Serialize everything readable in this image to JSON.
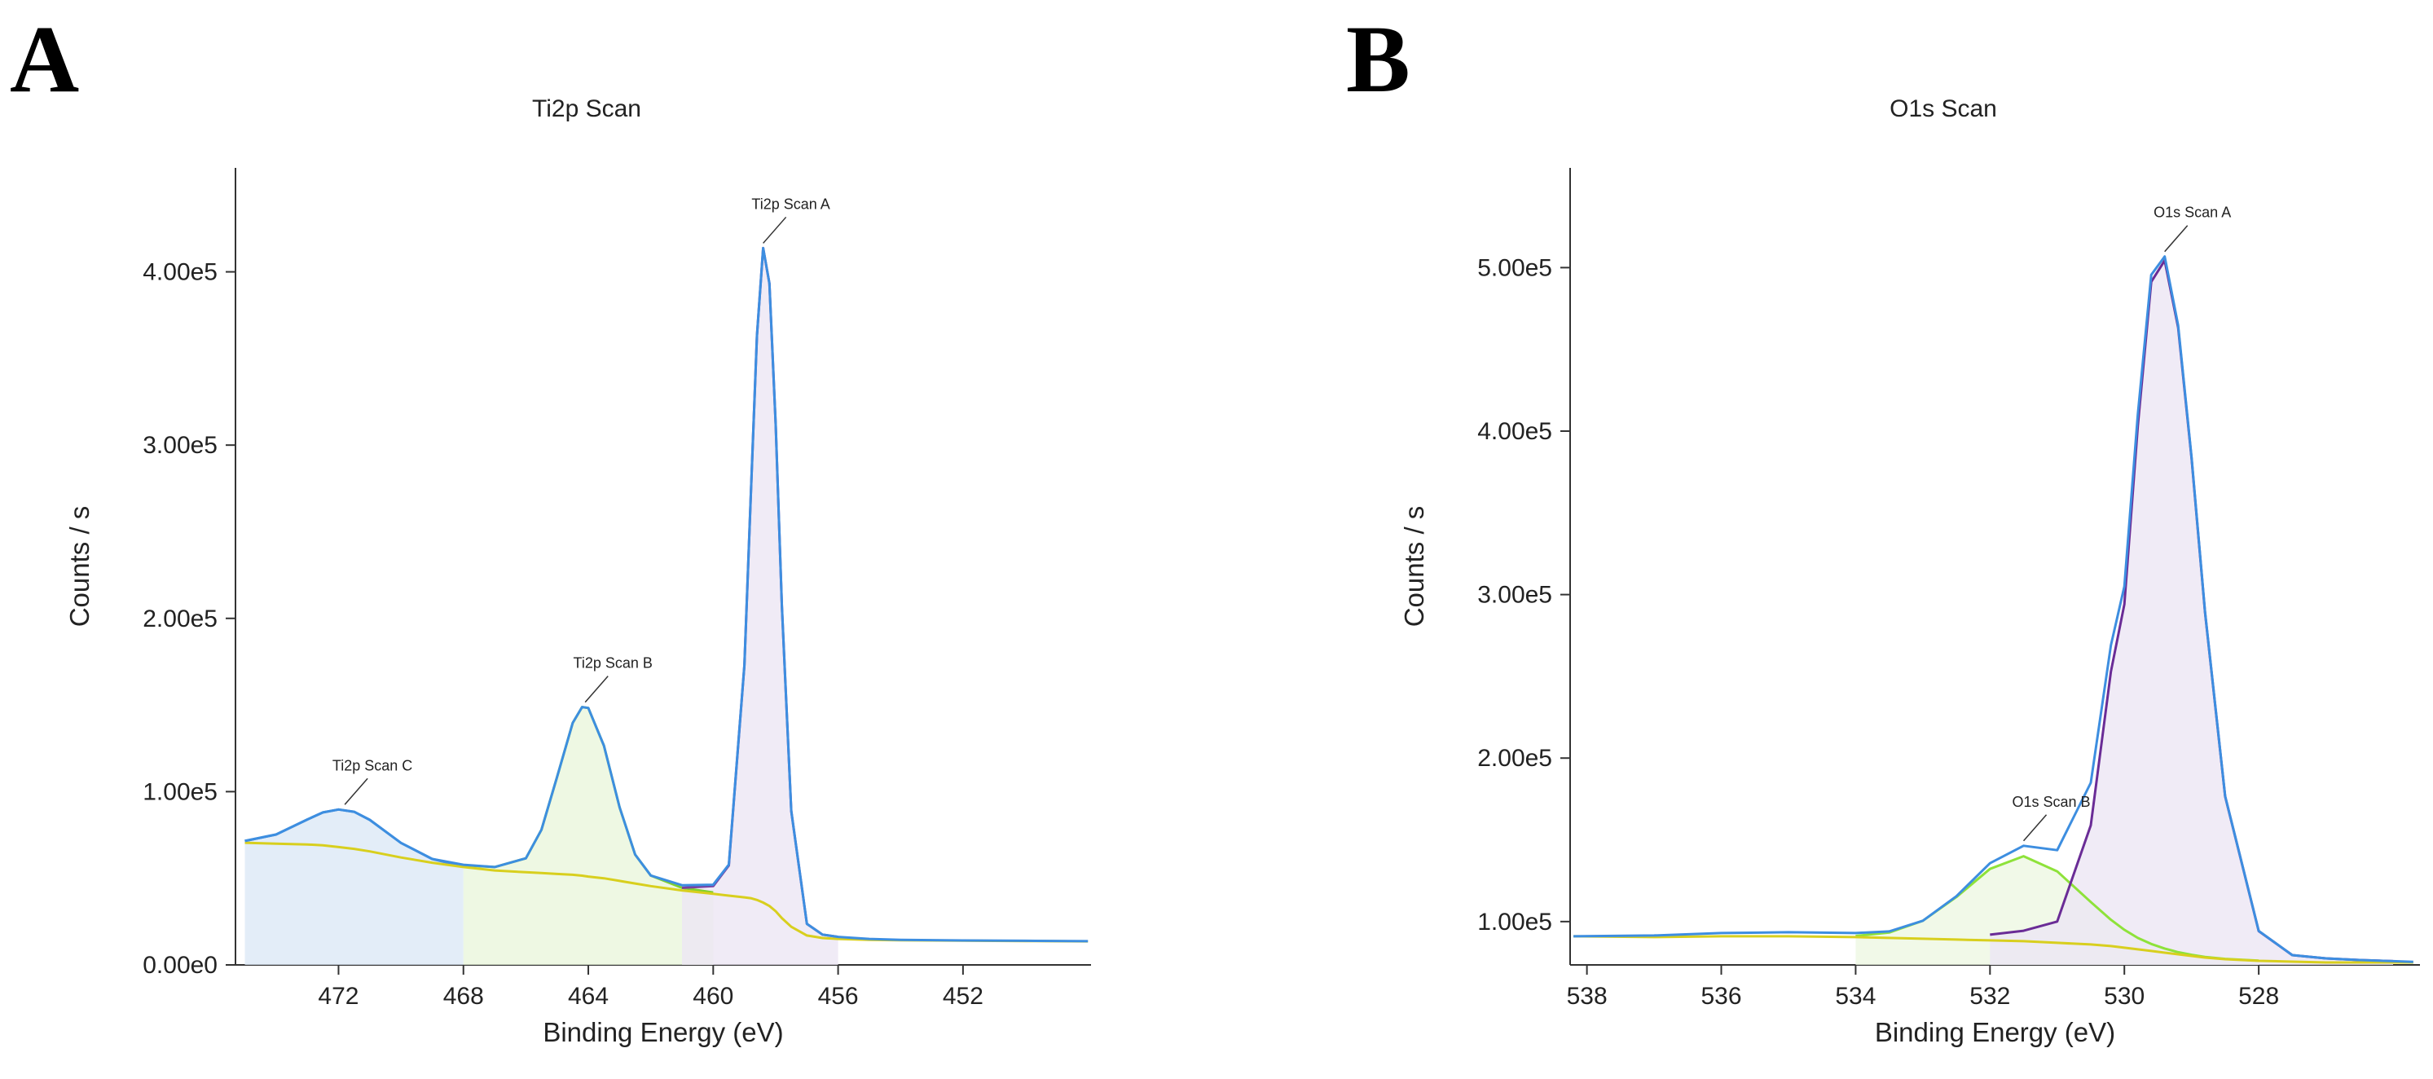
{
  "chart_data": [
    {
      "type": "line",
      "panel_label": "A",
      "title": "Ti2p Scan",
      "xlabel": "Binding Energy (eV)",
      "ylabel": "Counts / s",
      "xlim": [
        475.3,
        447.9
      ],
      "ylim": [
        0,
        460000
      ],
      "xticks": [
        472,
        468,
        464,
        460,
        456,
        452
      ],
      "yticks": [
        {
          "value": 0,
          "label": "0.00e0"
        },
        {
          "value": 100000,
          "label": "1.00e5"
        },
        {
          "value": 200000,
          "label": "2.00e5"
        },
        {
          "value": 300000,
          "label": "3.00e5"
        },
        {
          "value": 400000,
          "label": "4.00e5"
        }
      ],
      "x": [
        475,
        474,
        473,
        472.5,
        472,
        471.5,
        471,
        470,
        469,
        468,
        467,
        466,
        465.5,
        465,
        464.5,
        464.2,
        464,
        463.5,
        463,
        462.5,
        462,
        461,
        460,
        459.5,
        459,
        458.8,
        458.6,
        458.4,
        458.2,
        458,
        457.8,
        457.5,
        457,
        456.5,
        456,
        455,
        454,
        452,
        450,
        448
      ],
      "series": [
        {
          "color": "#4a8fd8",
          "fill": "#dce8f6",
          "values": [
            71560,
            75270,
            83900,
            88000,
            89700,
            88400,
            83700,
            70400,
            61160,
            56800,
            null,
            null,
            null,
            null,
            null,
            null,
            null,
            null,
            null,
            null,
            null,
            null,
            null,
            null,
            null,
            null,
            null,
            null,
            null,
            null,
            null,
            null,
            null,
            null,
            null,
            null,
            null,
            null,
            null,
            null
          ]
        },
        {
          "color": "#7fd02e",
          "fill": "#eaf6dc",
          "values": [
            null,
            null,
            null,
            null,
            null,
            null,
            null,
            null,
            null,
            57500,
            56500,
            61500,
            78000,
            108500,
            139700,
            148800,
            148300,
            126500,
            91000,
            63700,
            51600,
            44500,
            41800,
            null,
            null,
            null,
            null,
            null,
            null,
            null,
            null,
            null,
            null,
            null,
            null,
            null,
            null,
            null,
            null,
            null
          ]
        },
        {
          "color": "#7a3fa0",
          "fill": "#ece6f4",
          "values": [
            null,
            null,
            null,
            null,
            null,
            null,
            null,
            null,
            null,
            null,
            null,
            null,
            null,
            null,
            null,
            null,
            null,
            null,
            null,
            null,
            null,
            44500,
            45500,
            57400,
            173000,
            269100,
            363200,
            413700,
            393300,
            311800,
            207100,
            88900,
            23700,
            17500,
            16200,
            null,
            null,
            null,
            null,
            null
          ]
        },
        {
          "color": "#d8cf1e",
          "values": [
            70500,
            70000,
            69500,
            69000,
            68000,
            67000,
            65500,
            62000,
            59000,
            56500,
            54500,
            53500,
            53000,
            52500,
            52000,
            51500,
            51000,
            50000,
            48500,
            47000,
            45500,
            43000,
            41000,
            40000,
            39000,
            38500,
            37500,
            36000,
            34000,
            31000,
            27000,
            22000,
            17000,
            15500,
            15000,
            14500,
            14200,
            14000,
            13800,
            13600
          ]
        },
        {
          "color": "#3d8ee0",
          "values": [
            71560,
            75270,
            83900,
            88000,
            89700,
            88400,
            83700,
            70400,
            61160,
            57800,
            56500,
            61500,
            78000,
            108500,
            139700,
            148800,
            148300,
            126500,
            91000,
            63700,
            51600,
            46000,
            46300,
            57900,
            173000,
            269100,
            363200,
            413700,
            393300,
            311800,
            207100,
            88900,
            23700,
            17500,
            16200,
            15000,
            14500,
            14100,
            13900,
            13700
          ]
        }
      ],
      "annotations": [
        {
          "label": "Ti2p Scan A",
          "x": 458.4,
          "y": 413700
        },
        {
          "label": "Ti2p Scan B",
          "x": 464.1,
          "y": 148800
        },
        {
          "label": "Ti2p Scan C",
          "x": 471.8,
          "y": 89700
        }
      ]
    },
    {
      "type": "line",
      "panel_label": "B",
      "title": "O1s Scan",
      "xlabel": "Binding Energy (eV)",
      "ylabel": "Counts / s",
      "xlim": [
        538.25,
        525.6
      ],
      "ylim": [
        73500,
        561000
      ],
      "xticks": [
        538,
        536,
        534,
        532,
        530,
        528
      ],
      "yticks": [
        {
          "value": 100000,
          "label": "1.00e5"
        },
        {
          "value": 200000,
          "label": "2.00e5"
        },
        {
          "value": 300000,
          "label": "3.00e5"
        },
        {
          "value": 400000,
          "label": "4.00e5"
        },
        {
          "value": 500000,
          "label": "5.00e5"
        }
      ],
      "x": [
        538.2,
        537,
        536,
        535,
        534,
        533.5,
        533,
        532.5,
        532,
        531.5,
        531,
        530.5,
        530.2,
        530,
        529.8,
        529.6,
        529.4,
        529.2,
        529,
        528.8,
        528.5,
        528,
        527.5,
        527,
        526.5,
        526,
        525.7
      ],
      "series": [
        {
          "color": "#8ee23a",
          "fill": "#eef8e2",
          "values": [
            null,
            null,
            null,
            null,
            91200,
            93300,
            100500,
            115000,
            132200,
            140000,
            130700,
            112000,
            101100,
            95000,
            90000,
            86300,
            83500,
            81300,
            79700,
            78400,
            77200,
            76100,
            null,
            null,
            null,
            null,
            null
          ]
        },
        {
          "color": "#6a2c96",
          "fill": "#ece6f4",
          "values": [
            null,
            null,
            null,
            null,
            null,
            null,
            null,
            null,
            92000,
            94400,
            100000,
            158900,
            252900,
            294000,
            403000,
            491300,
            504300,
            463400,
            383300,
            289200,
            176600,
            94200,
            79500,
            77500,
            76500,
            75800,
            null
          ]
        },
        {
          "color": "#d8cf1e",
          "values": [
            91000,
            90500,
            91000,
            91000,
            90500,
            90000,
            89500,
            89000,
            88500,
            88000,
            87000,
            86000,
            85000,
            84000,
            83000,
            82000,
            81000,
            80000,
            79000,
            78000,
            77000,
            76000,
            75500,
            75000,
            75000,
            75000,
            75000
          ]
        },
        {
          "color": "#3d8ee0",
          "values": [
            91000,
            91500,
            93000,
            93500,
            93000,
            94000,
            100500,
            115500,
            135700,
            146400,
            143700,
            184900,
            269000,
            305000,
            410000,
            495600,
            506800,
            464700,
            384000,
            289600,
            176800,
            94300,
            79500,
            77500,
            76500,
            75800,
            75400
          ]
        }
      ],
      "annotations": [
        {
          "label": "O1s Scan A",
          "x": 529.4,
          "y": 506800
        },
        {
          "label": "O1s Scan B",
          "x": 531.5,
          "y": 146400
        }
      ]
    }
  ]
}
